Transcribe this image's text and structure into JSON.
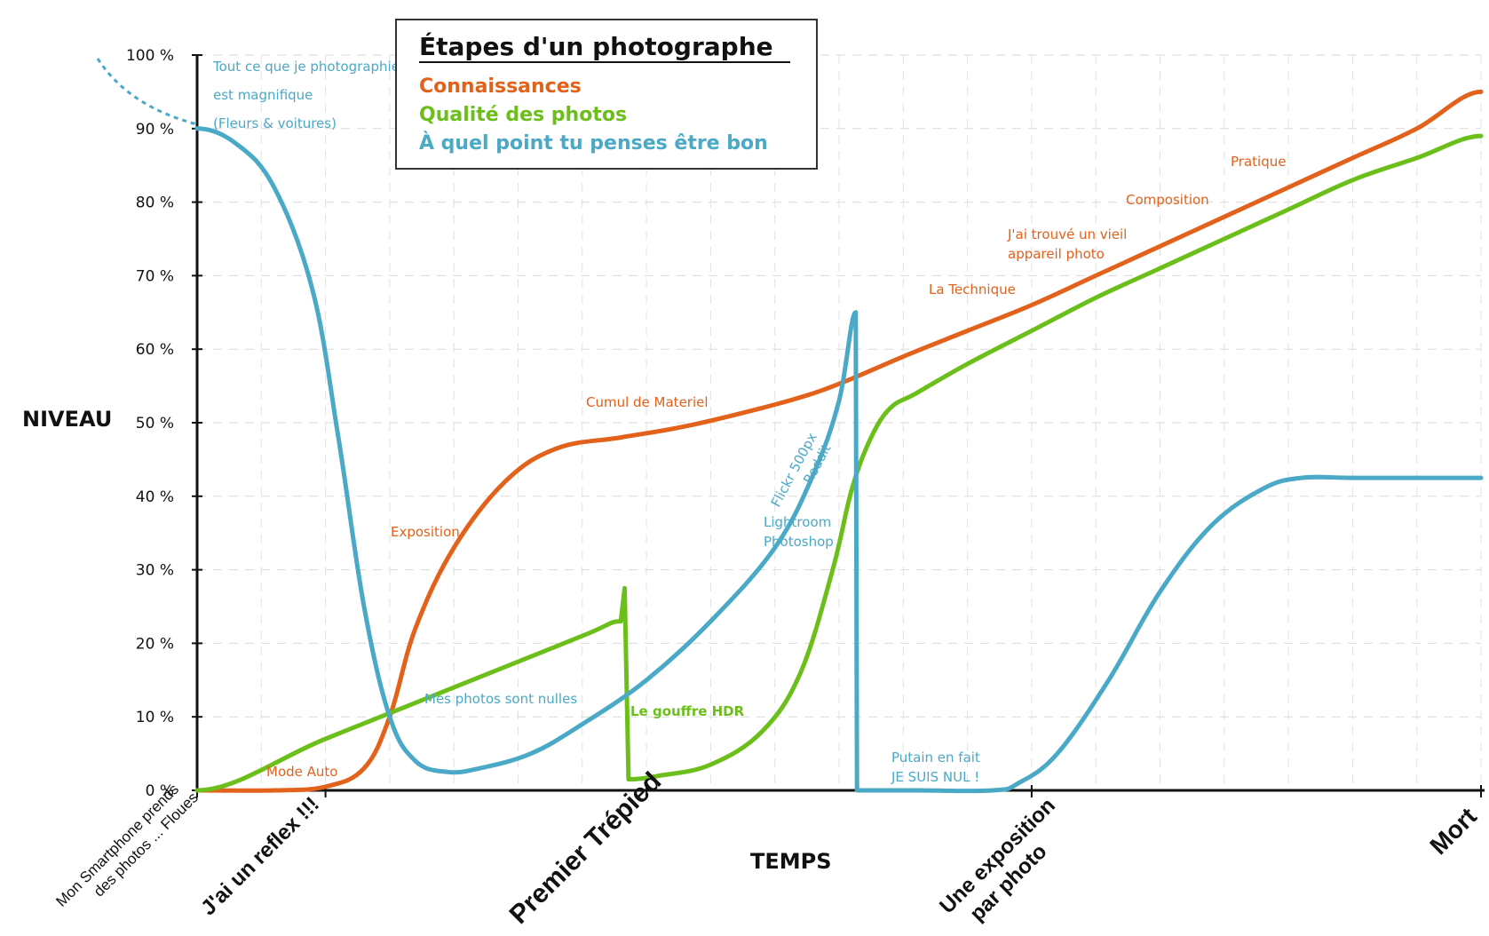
{
  "chart_data": {
    "type": "line",
    "xlabel": "TEMPS",
    "ylabel": "NIVEAU",
    "ylim": [
      0,
      100
    ],
    "y_ticks": [
      "0 %",
      "10 %",
      "20 %",
      "30 %",
      "40 %",
      "50 %",
      "60 %",
      "70 %",
      "80 %",
      "90 %",
      "100 %"
    ],
    "xlim": [
      0,
      100
    ],
    "categories": [
      {
        "label": "Mon Smartphone prends des photos ... Floues",
        "x": 0
      },
      {
        "label": "J'ai un reflex !!!",
        "x": 10
      },
      {
        "label": "Premier Trépied",
        "x": 35
      },
      {
        "label": "Une exposition par photo",
        "x": 65
      },
      {
        "label": "Mort",
        "x": 100
      }
    ],
    "legend": {
      "title": "Étapes d'un photographe",
      "items": [
        "Connaissances",
        "Qualité des photos",
        "À quel point tu penses être bon"
      ]
    },
    "colors": {
      "Connaissances": "#e2621b",
      "Qualité des photos": "#6cbf1b",
      "À quel point tu penses être bon": "#4aa9c6"
    },
    "series": [
      {
        "name": "Connaissances",
        "points": [
          [
            0,
            0
          ],
          [
            6,
            0
          ],
          [
            10,
            0.5
          ],
          [
            13,
            3
          ],
          [
            15,
            10
          ],
          [
            17,
            22
          ],
          [
            20,
            33
          ],
          [
            24,
            42
          ],
          [
            28,
            46.5
          ],
          [
            33,
            48
          ],
          [
            38,
            49.5
          ],
          [
            44,
            52
          ],
          [
            48,
            54
          ],
          [
            51,
            56
          ],
          [
            55,
            59
          ],
          [
            60,
            62.5
          ],
          [
            65,
            66
          ],
          [
            70,
            70
          ],
          [
            75,
            74
          ],
          [
            80,
            78
          ],
          [
            85,
            82
          ],
          [
            90,
            86
          ],
          [
            95,
            90
          ],
          [
            100,
            95
          ]
        ]
      },
      {
        "name": "Qualité des photos",
        "points": [
          [
            0,
            0
          ],
          [
            10,
            7
          ],
          [
            20,
            14
          ],
          [
            30,
            21
          ],
          [
            33,
            23
          ],
          [
            33.3,
            27.5
          ],
          [
            33.6,
            1.5
          ],
          [
            36,
            2
          ],
          [
            40,
            3.5
          ],
          [
            44,
            8
          ],
          [
            47,
            16
          ],
          [
            49.5,
            30
          ],
          [
            51,
            41
          ],
          [
            52.5,
            48
          ],
          [
            54,
            52
          ],
          [
            56,
            54
          ],
          [
            60,
            58
          ],
          [
            65,
            62.5
          ],
          [
            70,
            67
          ],
          [
            75,
            71
          ],
          [
            80,
            75
          ],
          [
            85,
            79
          ],
          [
            90,
            83
          ],
          [
            95,
            86
          ],
          [
            100,
            89
          ]
        ]
      },
      {
        "name": "À quel point tu penses être bon",
        "points": [
          [
            0,
            90
          ],
          [
            3,
            88
          ],
          [
            6,
            82
          ],
          [
            9,
            68
          ],
          [
            11,
            48
          ],
          [
            13,
            25
          ],
          [
            15,
            10
          ],
          [
            17,
            4
          ],
          [
            19.5,
            2.5
          ],
          [
            22,
            3
          ],
          [
            26,
            5
          ],
          [
            30,
            9
          ],
          [
            35,
            15
          ],
          [
            40,
            23
          ],
          [
            45,
            33
          ],
          [
            48,
            43
          ],
          [
            50,
            53
          ],
          [
            51.3,
            65
          ],
          [
            51.4,
            0
          ],
          [
            56,
            0
          ],
          [
            62,
            0
          ],
          [
            64,
            1
          ],
          [
            67,
            5
          ],
          [
            71,
            15
          ],
          [
            75,
            27
          ],
          [
            79,
            36
          ],
          [
            83,
            41
          ],
          [
            86,
            42.5
          ],
          [
            90,
            42.5
          ],
          [
            95,
            42.5
          ],
          [
            100,
            42.5
          ]
        ]
      }
    ],
    "start_dotted_label": "Tout ce que je photographie est magnifique (Fleurs & voitures)",
    "annotations": [
      {
        "text": "Mode Auto",
        "series": "Connaissances"
      },
      {
        "text": "Exposition",
        "series": "Connaissances"
      },
      {
        "text": "Cumul de Materiel",
        "series": "Connaissances"
      },
      {
        "text": "La Technique",
        "series": "Connaissances"
      },
      {
        "text": "J'ai trouvé un vieil appareil photo",
        "series": "Connaissances"
      },
      {
        "text": "Composition",
        "series": "Connaissances"
      },
      {
        "text": "Pratique",
        "series": "Connaissances"
      },
      {
        "text": "Le gouffre HDR",
        "series": "Qualité des photos"
      },
      {
        "text": "Mes photos sont nulles",
        "series": "À quel point tu penses être bon"
      },
      {
        "text": "Flickr 500px Reddit",
        "series": "À quel point tu penses être bon"
      },
      {
        "text": "Lightroom Photoshop",
        "series": "À quel point tu penses être bon"
      },
      {
        "text": "Putain en fait JE SUIS NUL !",
        "series": "À quel point tu penses être bon"
      }
    ]
  }
}
